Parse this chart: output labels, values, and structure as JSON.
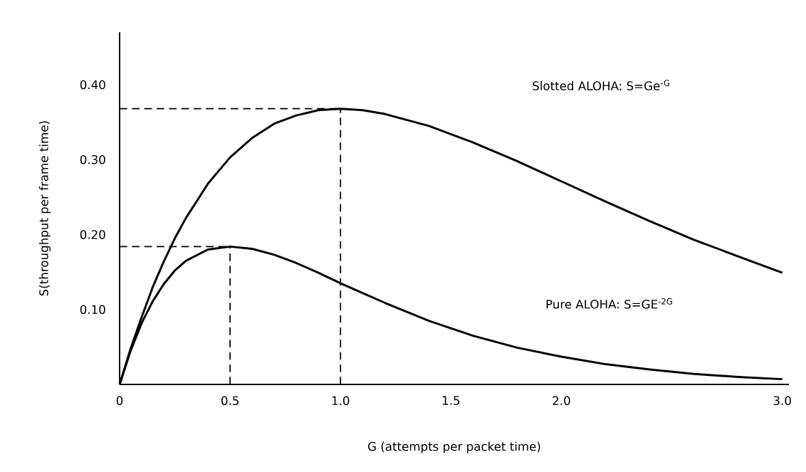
{
  "chart_data": {
    "type": "line",
    "xlabel": "G (attempts per packet time)",
    "ylabel": "S(throughput per frame time)",
    "annotations": [
      "Slotted ALOHA: S=Ge$^{-G}$",
      "Pure ALOHA: S=GE$^{-2G}$"
    ],
    "x": [
      0,
      0.05,
      0.1,
      0.15,
      0.2,
      0.25,
      0.3,
      0.4,
      0.5,
      0.6,
      0.7,
      0.8,
      0.9,
      1.0,
      1.1,
      1.2,
      1.4,
      1.6,
      1.8,
      2.0,
      2.2,
      2.4,
      2.6,
      2.8,
      3.0
    ],
    "series": [
      {
        "color": "#000000",
        "values": [
          0,
          0.048,
          0.09,
          0.13,
          0.164,
          0.195,
          0.222,
          0.268,
          0.303,
          0.329,
          0.348,
          0.359,
          0.366,
          0.368,
          0.366,
          0.361,
          0.345,
          0.323,
          0.298,
          0.271,
          0.244,
          0.218,
          0.193,
          0.171,
          0.149
        ]
      },
      {
        "color": "#000000",
        "values": [
          0,
          0.045,
          0.082,
          0.111,
          0.134,
          0.152,
          0.165,
          0.18,
          0.184,
          0.181,
          0.173,
          0.162,
          0.149,
          0.135,
          0.122,
          0.109,
          0.085,
          0.065,
          0.049,
          0.037,
          0.027,
          0.02,
          0.014,
          0.01,
          0.007
        ]
      }
    ],
    "xlim": [
      0,
      3.03
    ],
    "ylim": [
      0,
      0.47
    ],
    "xticks": [
      0,
      0.5,
      {
        "value": 1.0,
        "label": "1.0"
      },
      1.5,
      {
        "value": 2.0,
        "label": "2.0"
      },
      {
        "value": 3.0,
        "label": "3.0"
      }
    ],
    "yticks": [
      {
        "value": 0.1,
        "label": "0.10"
      },
      {
        "value": 0.2,
        "label": "0.20"
      },
      {
        "value": 0.3,
        "label": "0.30"
      },
      {
        "value": 0.4,
        "label": "0.40"
      }
    ],
    "ref_lines": [
      {
        "axis": "y",
        "value": 0.368,
        "line_style": "dashed"
      },
      {
        "axis": "y",
        "value": 0.184,
        "line_style": "dashed"
      },
      {
        "axis": "x",
        "value": 1.0,
        "line_style": "dashed"
      },
      {
        "axis": "x",
        "value": 0.5,
        "line_style": "dashed"
      }
    ],
    "grid": false,
    "marker": "none",
    "line_style": "solid"
  }
}
